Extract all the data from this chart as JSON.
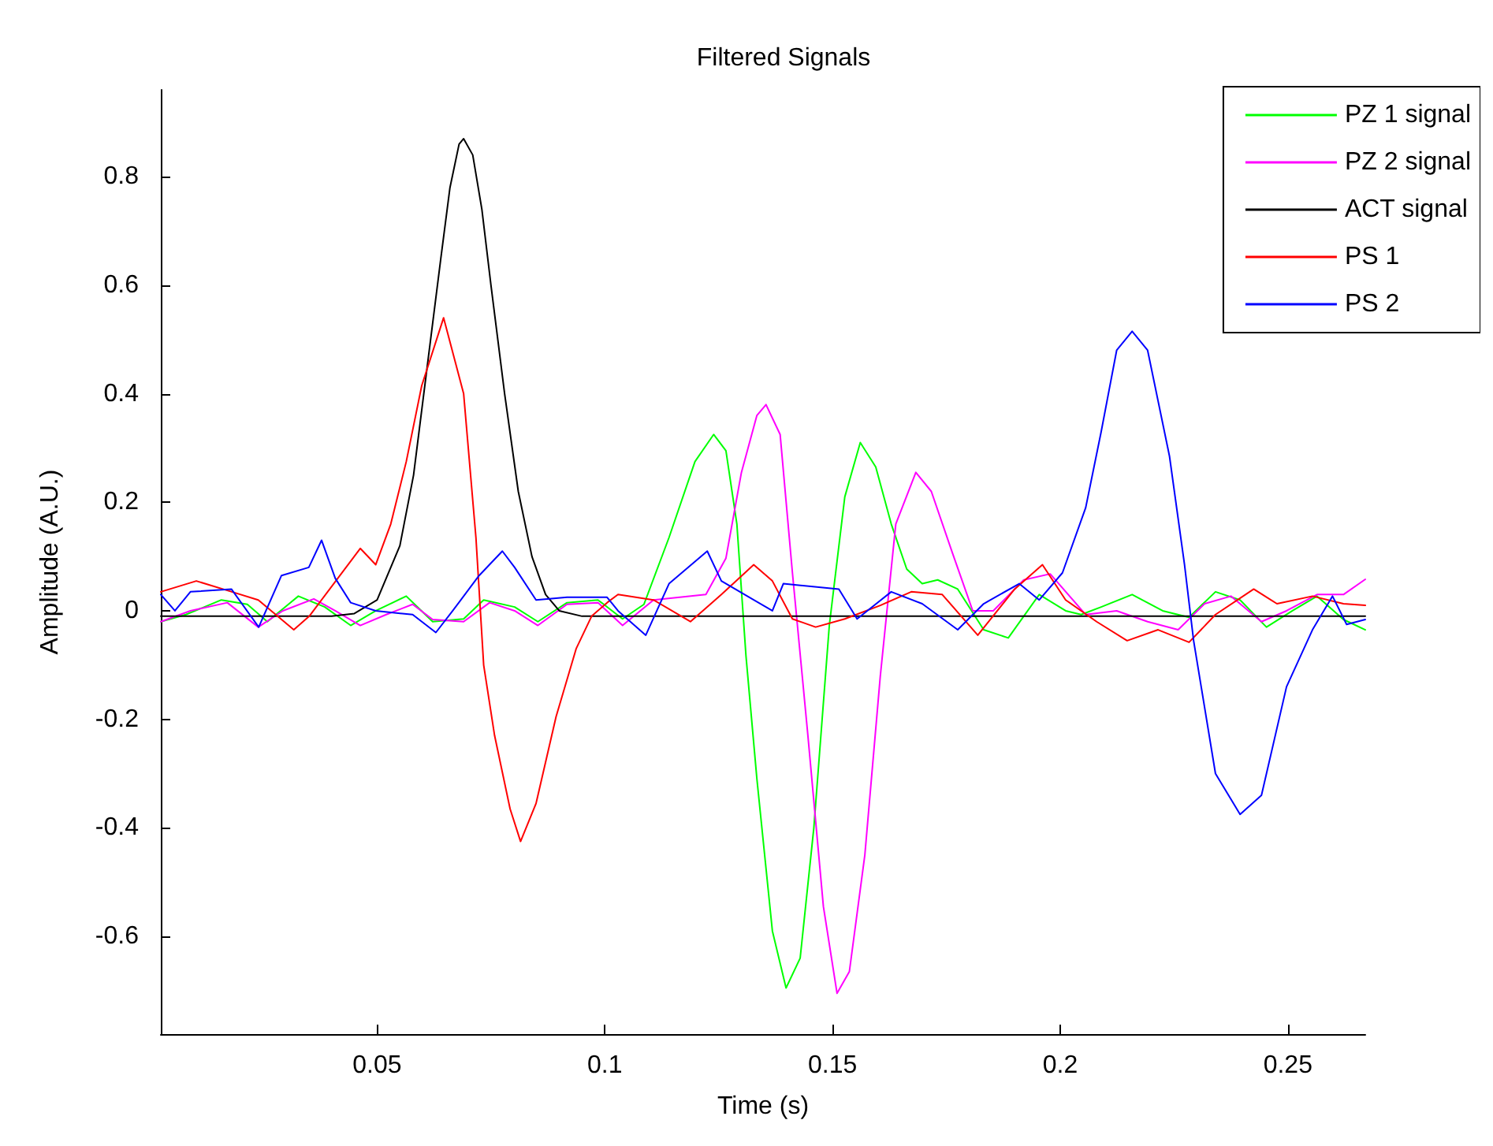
{
  "chart_data": {
    "type": "line",
    "title": "Filtered Signals",
    "xlabel": "Time (s)",
    "ylabel": "Amplitude (A.U.)",
    "xlim": [
      0.0025,
      0.267
    ],
    "ylim": [
      -0.78,
      0.96
    ],
    "xticks": [
      0.05,
      0.1,
      0.15,
      0.2,
      0.25
    ],
    "yticks": [
      -0.6,
      -0.4,
      -0.2,
      0,
      0.2,
      0.4,
      0.6,
      0.8
    ],
    "grid": false,
    "legend": "top right",
    "marker": "none",
    "line_style": "solid",
    "series": [
      {
        "name": "PZ 1 signal",
        "color": "#00ff00",
        "x": [
          0.0025,
          0.008,
          0.0158,
          0.0215,
          0.0259,
          0.0327,
          0.0385,
          0.0442,
          0.0497,
          0.0564,
          0.0622,
          0.069,
          0.0734,
          0.0802,
          0.0853,
          0.0917,
          0.0985,
          0.1039,
          0.1086,
          0.1141,
          0.1198,
          0.1239,
          0.1266,
          0.129,
          0.131,
          0.1334,
          0.1368,
          0.1398,
          0.1429,
          0.1459,
          0.1493,
          0.1527,
          0.1561,
          0.1595,
          0.1629,
          0.1663,
          0.1697,
          0.1731,
          0.1775,
          0.1832,
          0.1886,
          0.1954,
          0.2012,
          0.2046,
          0.209,
          0.2158,
          0.2225,
          0.2283,
          0.2341,
          0.2395,
          0.2453,
          0.251,
          0.2564,
          0.2622,
          0.267
        ],
        "values": [
          -0.02,
          -0.007,
          0.02,
          0.012,
          -0.02,
          0.027,
          0.007,
          -0.027,
          0,
          0.027,
          -0.02,
          -0.015,
          0.02,
          0.007,
          -0.02,
          0.015,
          0.02,
          -0.015,
          0.012,
          0.135,
          0.275,
          0.325,
          0.295,
          0.16,
          -0.083,
          -0.31,
          -0.59,
          -0.695,
          -0.64,
          -0.4,
          -0.027,
          0.21,
          0.31,
          0.265,
          0.16,
          0.077,
          0.05,
          0.057,
          0.04,
          -0.035,
          -0.05,
          0.03,
          0,
          -0.007,
          0.007,
          0.03,
          0,
          -0.012,
          0.035,
          0.02,
          -0.03,
          0,
          0.027,
          -0.016,
          -0.035
        ]
      },
      {
        "name": "PZ 2 signal",
        "color": "#ff00ff",
        "x": [
          0.0025,
          0.009,
          0.0171,
          0.0239,
          0.0293,
          0.0361,
          0.0408,
          0.0463,
          0.052,
          0.0578,
          0.0622,
          0.069,
          0.0747,
          0.0802,
          0.0853,
          0.0917,
          0.0985,
          0.1039,
          0.1107,
          0.1222,
          0.1266,
          0.13,
          0.1334,
          0.1354,
          0.1385,
          0.1412,
          0.1446,
          0.148,
          0.151,
          0.1537,
          0.1571,
          0.1605,
          0.1639,
          0.1683,
          0.1717,
          0.1764,
          0.1808,
          0.1853,
          0.192,
          0.1978,
          0.2056,
          0.2124,
          0.2192,
          0.2259,
          0.2317,
          0.2375,
          0.2442,
          0.2497,
          0.2564,
          0.2622,
          0.267
        ],
        "values": [
          -0.02,
          0,
          0.015,
          -0.03,
          0,
          0.022,
          0,
          -0.027,
          -0.007,
          0.012,
          -0.016,
          -0.02,
          0.015,
          0,
          -0.027,
          0.012,
          0.015,
          -0.027,
          0.02,
          0.03,
          0.097,
          0.255,
          0.36,
          0.38,
          0.325,
          0.07,
          -0.23,
          -0.545,
          -0.705,
          -0.665,
          -0.45,
          -0.12,
          0.16,
          0.255,
          0.22,
          0.105,
          0,
          0,
          0.057,
          0.068,
          -0.007,
          0,
          -0.02,
          -0.035,
          0.013,
          0.027,
          -0.02,
          0,
          0.03,
          0.03,
          0.058
        ]
      },
      {
        "name": "ACT signal",
        "color": "#000000",
        "x": [
          0.0025,
          0.04,
          0.045,
          0.05,
          0.055,
          0.058,
          0.061,
          0.064,
          0.066,
          0.068,
          0.069,
          0.071,
          0.073,
          0.075,
          0.078,
          0.081,
          0.084,
          0.087,
          0.09,
          0.095,
          0.267
        ],
        "values": [
          -0.01,
          -0.01,
          -0.005,
          0.02,
          0.12,
          0.25,
          0.45,
          0.65,
          0.78,
          0.86,
          0.87,
          0.84,
          0.74,
          0.6,
          0.4,
          0.22,
          0.1,
          0.03,
          0,
          -0.01,
          -0.01
        ]
      },
      {
        "name": "PS 1",
        "color": "#ff0000",
        "x": [
          0.0025,
          0.0103,
          0.0181,
          0.0239,
          0.0317,
          0.0351,
          0.0463,
          0.0497,
          0.053,
          0.0564,
          0.0598,
          0.0646,
          0.069,
          0.0717,
          0.0734,
          0.0758,
          0.0792,
          0.0815,
          0.0849,
          0.0893,
          0.0937,
          0.0971,
          0.1005,
          0.1029,
          0.1107,
          0.1188,
          0.1256,
          0.1327,
          0.1368,
          0.1412,
          0.1463,
          0.1527,
          0.1605,
          0.1673,
          0.1741,
          0.1819,
          0.19,
          0.1961,
          0.2012,
          0.208,
          0.2147,
          0.2215,
          0.2283,
          0.2341,
          0.2425,
          0.2476,
          0.2554,
          0.2622,
          0.267
        ],
        "values": [
          0.035,
          0.055,
          0.035,
          0.02,
          -0.035,
          -0.01,
          0.115,
          0.085,
          0.16,
          0.275,
          0.415,
          0.54,
          0.4,
          0.135,
          -0.1,
          -0.23,
          -0.365,
          -0.425,
          -0.355,
          -0.195,
          -0.07,
          -0.01,
          0.015,
          0.03,
          0.02,
          -0.02,
          0.03,
          0.085,
          0.055,
          -0.015,
          -0.03,
          -0.015,
          0.01,
          0.035,
          0.03,
          -0.045,
          0.04,
          0.085,
          0.02,
          -0.02,
          -0.055,
          -0.035,
          -0.058,
          -0.007,
          0.04,
          0.013,
          0.027,
          0.013,
          0.01
        ]
      },
      {
        "name": "PS 2",
        "color": "#0000ff",
        "x": [
          0.0025,
          0.0056,
          0.009,
          0.018,
          0.024,
          0.029,
          0.035,
          0.0378,
          0.0408,
          0.0442,
          0.0497,
          0.0578,
          0.0629,
          0.0666,
          0.0724,
          0.0775,
          0.0802,
          0.0849,
          0.0917,
          0.1005,
          0.1029,
          0.109,
          0.1141,
          0.1225,
          0.1256,
          0.1368,
          0.1392,
          0.1514,
          0.1554,
          0.1629,
          0.1697,
          0.1775,
          0.1832,
          0.191,
          0.1954,
          0.2005,
          0.2056,
          0.209,
          0.2124,
          0.2158,
          0.2192,
          0.224,
          0.2273,
          0.2293,
          0.2341,
          0.2395,
          0.2442,
          0.2497,
          0.2554,
          0.2598,
          0.2629,
          0.267
        ],
        "values": [
          0.03,
          0,
          0.035,
          0.04,
          -0.03,
          0.065,
          0.08,
          0.13,
          0.06,
          0.015,
          0,
          -0.007,
          -0.04,
          0,
          0.065,
          0.11,
          0.08,
          0.02,
          0.025,
          0.025,
          0,
          -0.045,
          0.05,
          0.11,
          0.055,
          0,
          0.05,
          0.04,
          -0.015,
          0.035,
          0.013,
          -0.035,
          0.013,
          0.05,
          0.02,
          0.07,
          0.19,
          0.33,
          0.48,
          0.515,
          0.48,
          0.285,
          0.085,
          -0.055,
          -0.3,
          -0.375,
          -0.34,
          -0.14,
          -0.035,
          0.027,
          -0.025,
          -0.016
        ]
      }
    ]
  }
}
